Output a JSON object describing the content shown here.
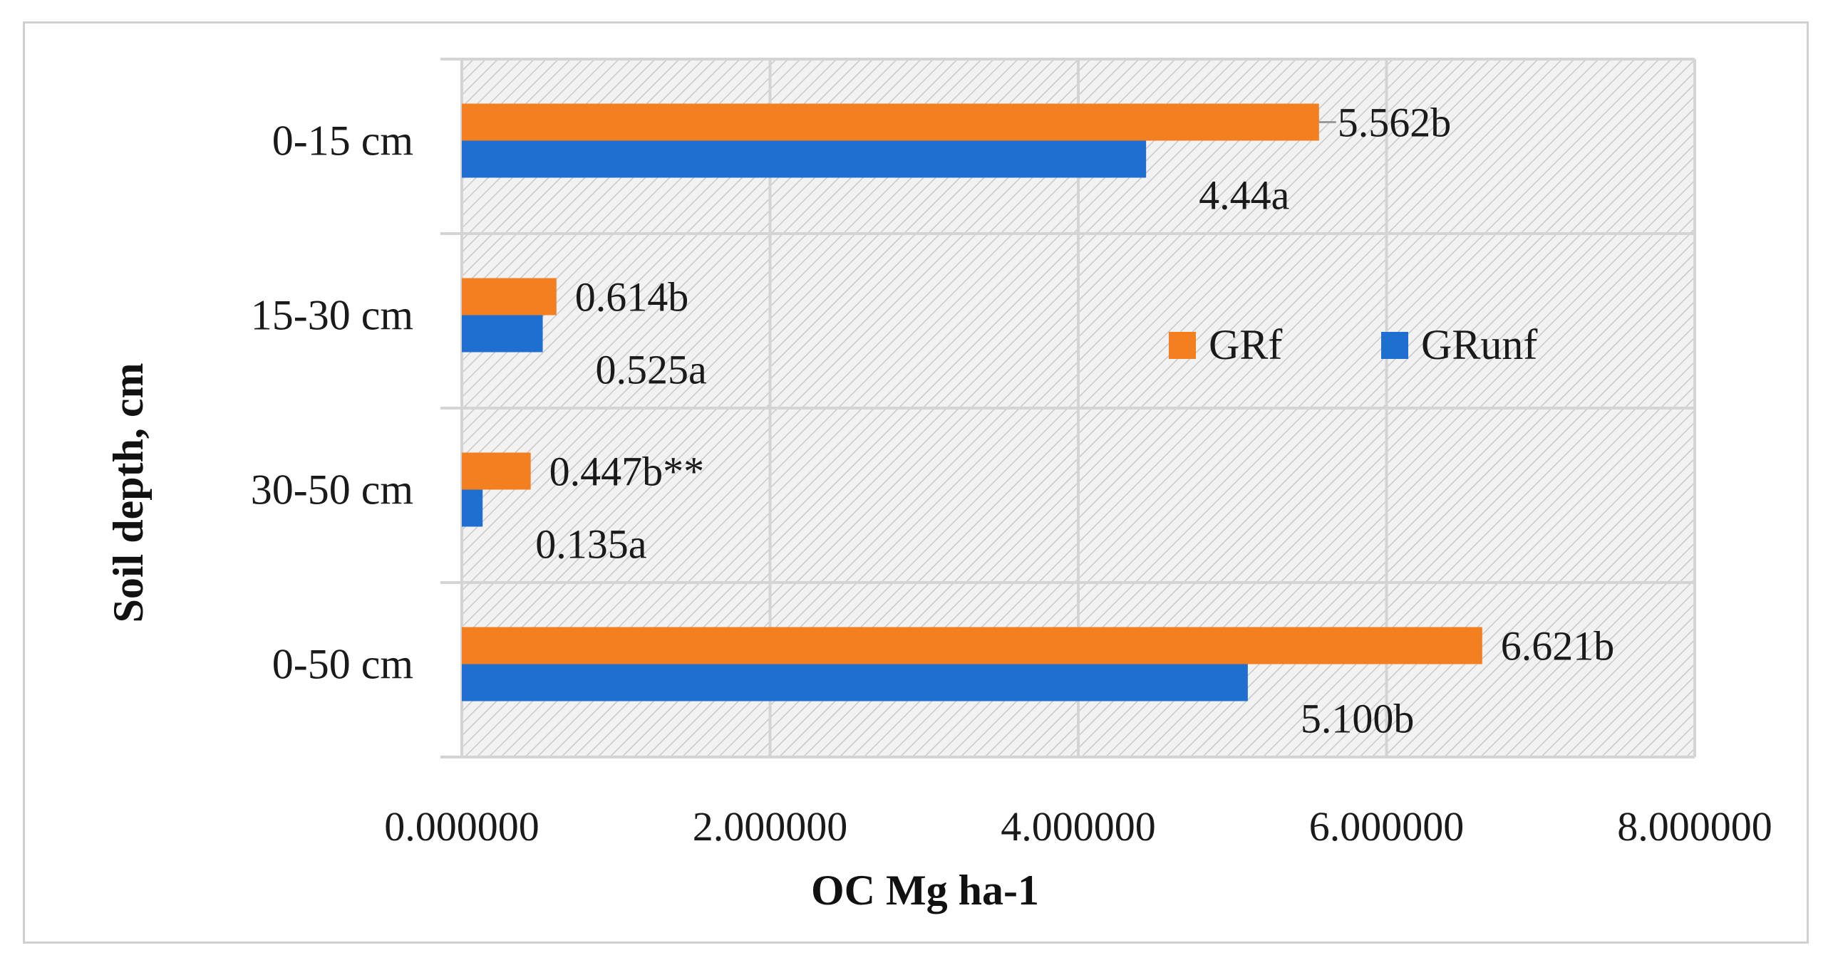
{
  "chart_data": {
    "type": "bar",
    "orientation": "horizontal",
    "categories": [
      "0-15 cm",
      "15-30 cm",
      "30-50 cm",
      "0-50 cm"
    ],
    "series": [
      {
        "name": "GRf",
        "color": "#f47f20",
        "values": [
          5.562,
          0.614,
          0.447,
          6.621
        ],
        "labels": [
          "5.562b",
          "0.614b",
          "0.447b**",
          "6.621b"
        ]
      },
      {
        "name": "GRunf",
        "color": "#1f6fd0",
        "values": [
          4.44,
          0.525,
          0.135,
          5.1
        ],
        "labels": [
          "4.44a",
          "0.525a",
          "0.135a",
          "5.100b"
        ]
      }
    ],
    "xlim": [
      0,
      8
    ],
    "xticks": [
      0,
      2,
      4,
      6,
      8
    ],
    "xtick_labels": [
      "0.000000",
      "2.000000",
      "4.000000",
      "6.000000",
      "8.000000"
    ],
    "xlabel": "OC  Mg ha-1",
    "ylabel": "Soil depth,  cm",
    "grid": true,
    "plot_fill": "diagonal-hatch",
    "legend_position": "center-right",
    "colors": {
      "GRf": "#f47f20",
      "GRunf": "#1f6fd0",
      "grid": "#d4d4d4",
      "hatch": "#cfcfcf"
    }
  }
}
